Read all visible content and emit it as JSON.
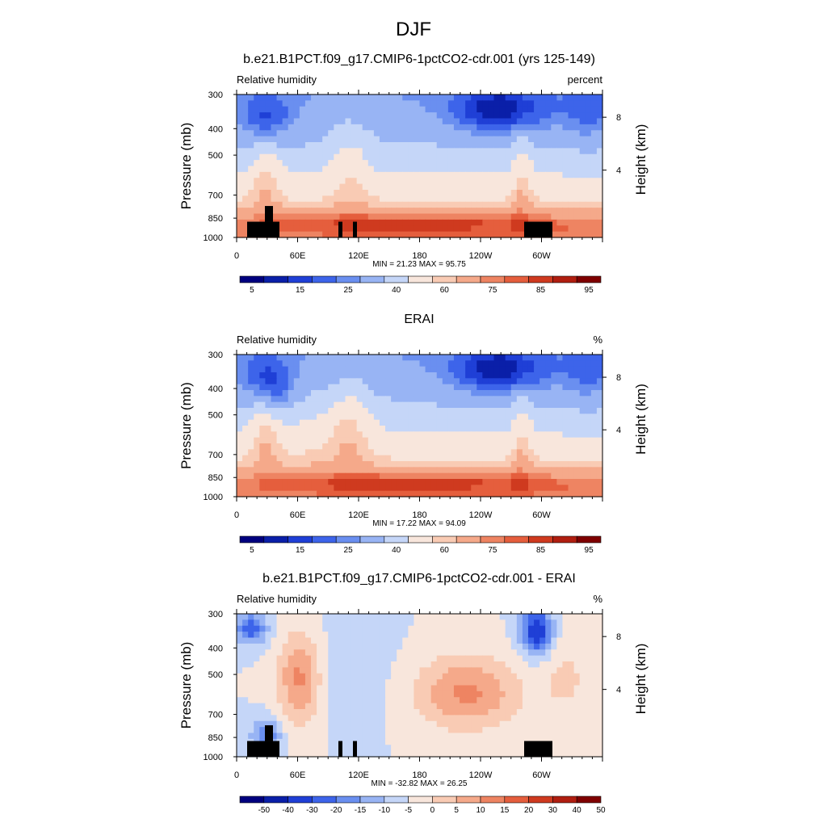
{
  "suptitle": "DJF",
  "colors": {
    "palette": [
      "#00007f",
      "#0a1fa8",
      "#1f3fd6",
      "#3d64ea",
      "#6a8ff0",
      "#98b4f4",
      "#c5d6f8",
      "#f8e6dc",
      "#f9cbb4",
      "#f5a98a",
      "#ee8462",
      "#e55e3d",
      "#cf3a1f",
      "#b01e10",
      "#7f0000"
    ],
    "land": "#000000"
  },
  "chart_data": [
    {
      "type": "heatmap",
      "title": "b.e21.B1PCT.f09_g17.CMIP6-1pctCO2-cdr.001 (yrs 125-149)",
      "left_label": "Relative humidity",
      "right_label": "percent",
      "ylabel": "Pressure (mb)",
      "ylabel_right": "Height (km)",
      "y_ticks": [
        "300",
        "400",
        "500",
        "700",
        "850",
        "1000"
      ],
      "y_ticks_right": [
        "8",
        "4"
      ],
      "x_ticks": [
        "0",
        "60E",
        "120E",
        "180",
        "120W",
        "60W"
      ],
      "min_max": "MIN =  21.23  MAX =  95.75",
      "colorbar_labels": [
        "5",
        "15",
        "25",
        "40",
        "60",
        "75",
        "85",
        "95"
      ],
      "value_range": [
        21.23,
        95.75
      ],
      "land_mask": true
    },
    {
      "type": "heatmap",
      "title": "ERAI",
      "left_label": "Relative humidity",
      "right_label": "%",
      "ylabel": "Pressure (mb)",
      "ylabel_right": "Height (km)",
      "y_ticks": [
        "300",
        "400",
        "500",
        "700",
        "850",
        "1000"
      ],
      "y_ticks_right": [
        "8",
        "4"
      ],
      "x_ticks": [
        "0",
        "60E",
        "120E",
        "180",
        "120W",
        "60W"
      ],
      "min_max": "MIN =  17.22  MAX =  94.09",
      "colorbar_labels": [
        "5",
        "15",
        "25",
        "40",
        "60",
        "75",
        "85",
        "95"
      ],
      "value_range": [
        17.22,
        94.09
      ],
      "land_mask": false
    },
    {
      "type": "heatmap",
      "title": "b.e21.B1PCT.f09_g17.CMIP6-1pctCO2-cdr.001 - ERAI",
      "left_label": "Relative humidity",
      "right_label": "%",
      "ylabel": "Pressure (mb)",
      "ylabel_right": "Height (km)",
      "y_ticks": [
        "300",
        "400",
        "500",
        "700",
        "850",
        "1000"
      ],
      "y_ticks_right": [
        "8",
        "4"
      ],
      "x_ticks": [
        "0",
        "60E",
        "120E",
        "180",
        "120W",
        "60W"
      ],
      "min_max": "MIN = -32.82  MAX =  26.25",
      "colorbar_labels": [
        "-50",
        "-40",
        "-30",
        "-20",
        "-15",
        "-10",
        "-5",
        "0",
        "5",
        "10",
        "15",
        "20",
        "30",
        "40",
        "50"
      ],
      "value_range": [
        -32.82,
        26.25
      ],
      "land_mask": true
    }
  ]
}
